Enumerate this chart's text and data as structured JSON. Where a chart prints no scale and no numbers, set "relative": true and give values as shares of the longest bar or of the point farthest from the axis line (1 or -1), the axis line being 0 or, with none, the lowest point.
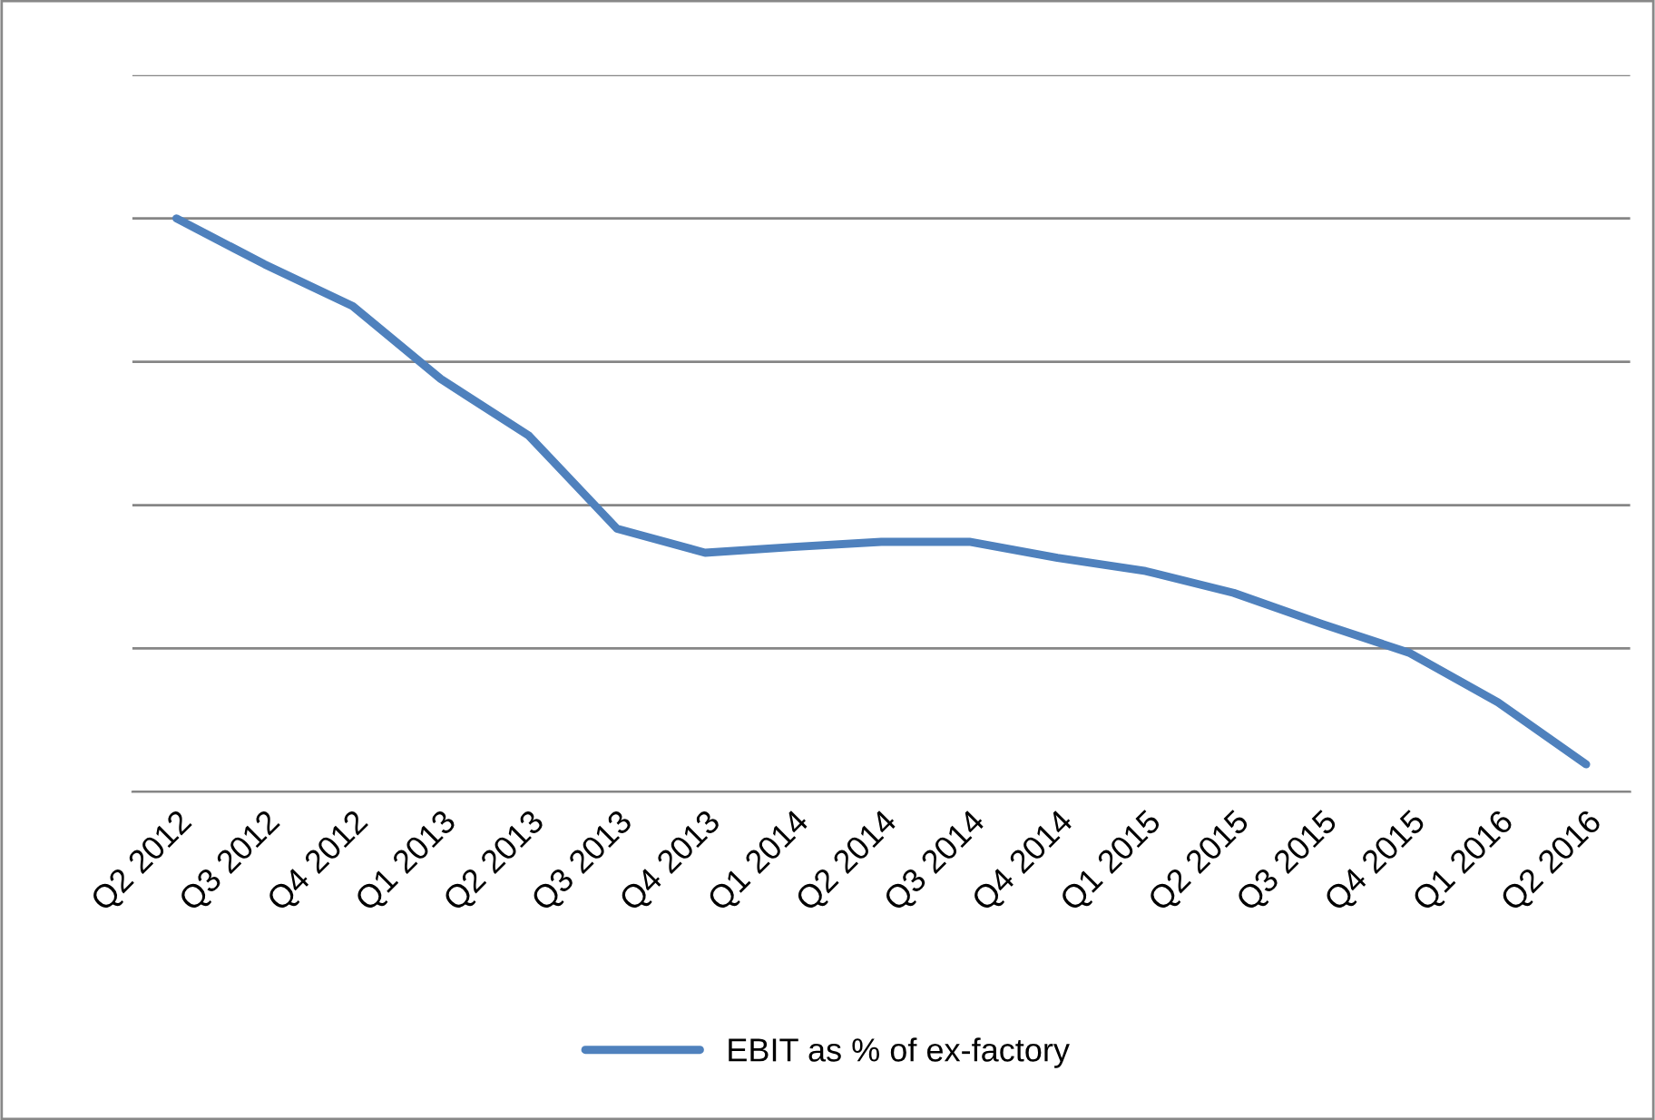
{
  "chart_data": {
    "type": "line",
    "relative": true,
    "categories": [
      "Q2 2012",
      "Q3 2012",
      "Q4 2012",
      "Q1 2013",
      "Q2 2013",
      "Q3 2013",
      "Q4 2013",
      "Q1 2014",
      "Q2 2014",
      "Q3 2014",
      "Q4 2014",
      "Q1 2015",
      "Q2 2015",
      "Q3 2015",
      "Q4 2015",
      "Q1 2016",
      "Q2 2016"
    ],
    "series": [
      {
        "name": "EBIT as % of ex-factory",
        "color": "#4f81bd",
        "values": [
          1,
          0.92,
          0.847,
          0.72,
          0.621,
          0.459,
          0.417,
          0.427,
          0.436,
          0.436,
          0.408,
          0.385,
          0.347,
          0.293,
          0.242,
          0.156,
          0.048
        ]
      }
    ],
    "grid": "y",
    "legend": "bottom",
    "marker": "none",
    "line_style": "solid"
  }
}
